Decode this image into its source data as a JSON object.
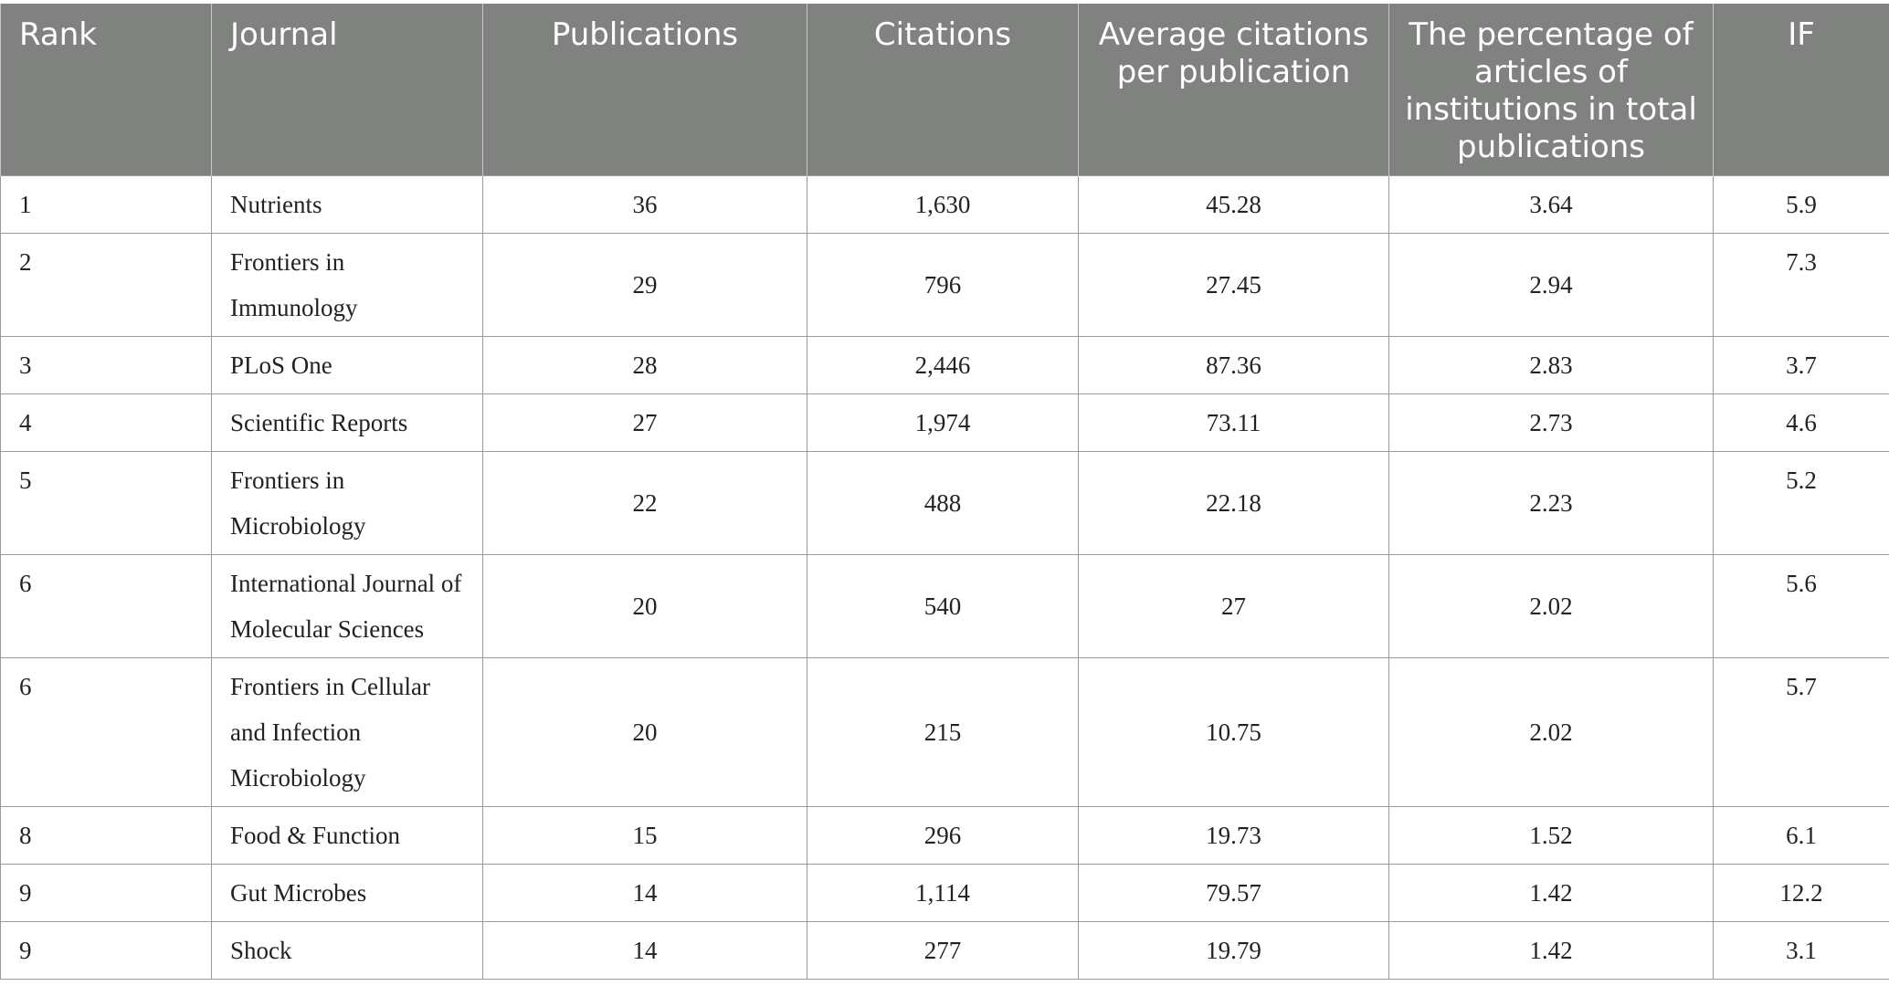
{
  "table": {
    "headers": [
      "Rank",
      "Journal",
      "Publications",
      "Citations",
      "Average citations per publication",
      "The percentage of articles of institutions in total publications",
      "IF"
    ],
    "rows": [
      {
        "rank": "1",
        "journal": "Nutrients",
        "publications": "36",
        "citations": "1,630",
        "avg": "45.28",
        "pct": "3.64",
        "if": "5.9"
      },
      {
        "rank": "2",
        "journal": "Frontiers in Immunology",
        "publications": "29",
        "citations": "796",
        "avg": "27.45",
        "pct": "2.94",
        "if": "7.3"
      },
      {
        "rank": "3",
        "journal": "PLoS One",
        "publications": "28",
        "citations": "2,446",
        "avg": "87.36",
        "pct": "2.83",
        "if": "3.7"
      },
      {
        "rank": "4",
        "journal": "Scientific Reports",
        "publications": "27",
        "citations": "1,974",
        "avg": "73.11",
        "pct": "2.73",
        "if": "4.6"
      },
      {
        "rank": "5",
        "journal": "Frontiers in Microbiology",
        "publications": "22",
        "citations": "488",
        "avg": "22.18",
        "pct": "2.23",
        "if": "5.2"
      },
      {
        "rank": "6",
        "journal": "International Journal of Molecular Sciences",
        "publications": "20",
        "citations": "540",
        "avg": "27",
        "pct": "2.02",
        "if": "5.6"
      },
      {
        "rank": "6",
        "journal": "Frontiers in Cellular and Infection Microbiology",
        "publications": "20",
        "citations": "215",
        "avg": "10.75",
        "pct": "2.02",
        "if": "5.7"
      },
      {
        "rank": "8",
        "journal": "Food & Function",
        "publications": "15",
        "citations": "296",
        "avg": "19.73",
        "pct": "1.52",
        "if": "6.1"
      },
      {
        "rank": "9",
        "journal": "Gut Microbes",
        "publications": "14",
        "citations": "1,114",
        "avg": "79.57",
        "pct": "1.42",
        "if": "12.2"
      },
      {
        "rank": "9",
        "journal": "Shock",
        "publications": "14",
        "citations": "277",
        "avg": "19.79",
        "pct": "1.42",
        "if": "3.1"
      }
    ]
  },
  "colors": {
    "header_bg": "#808280",
    "header_text": "#ffffff",
    "border": "#9a9a9a"
  }
}
